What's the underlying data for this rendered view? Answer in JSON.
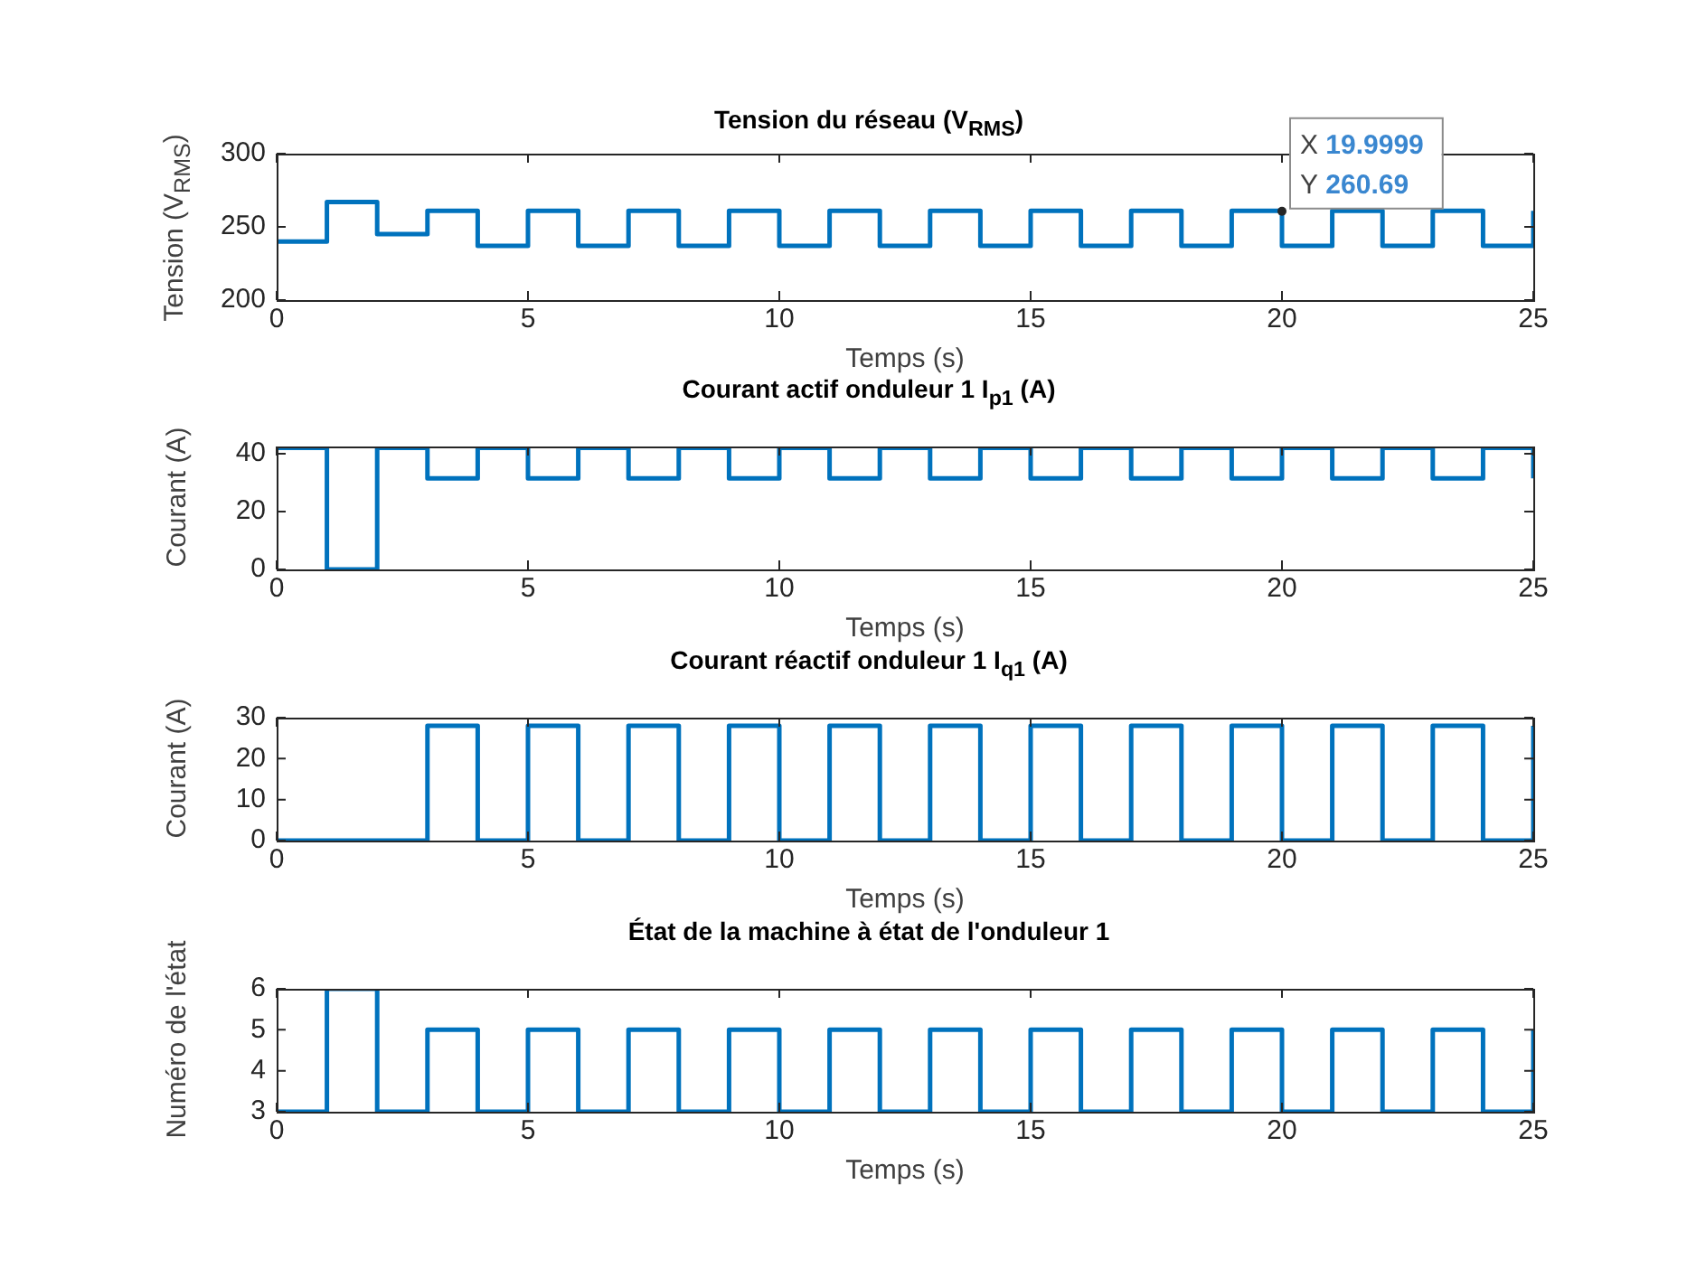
{
  "chart_data": [
    {
      "type": "step",
      "title": "Tension du réseau (V$_{RMS}$)",
      "xlabel": "Temps (s)",
      "ylabel": "Tension (V$_{RMS}$)",
      "color": "#0072bd",
      "line_style": "solid",
      "marker": "none",
      "x": [
        0,
        1,
        2,
        3,
        4,
        5,
        6,
        7,
        8,
        9,
        10,
        11,
        12,
        13,
        14,
        15,
        16,
        17,
        18,
        19,
        20,
        21,
        22,
        23,
        24,
        25
      ],
      "values": [
        240,
        267,
        245,
        261,
        237,
        261,
        237,
        261,
        237,
        261,
        237,
        261,
        237,
        261,
        237,
        261,
        237,
        261,
        237,
        261,
        237,
        261,
        237,
        261,
        237,
        261
      ],
      "xlim": [
        0,
        25
      ],
      "xticks": [
        0,
        5,
        10,
        15,
        20,
        25
      ],
      "ylim": [
        200,
        300
      ],
      "yticks": [
        200,
        250,
        300
      ],
      "annotations": [
        {
          "text": "X 19.9999\nY 260.69",
          "x": 19.9999,
          "y": 260.69
        }
      ]
    },
    {
      "type": "step",
      "title": "Courant actif onduleur 1 I$_{p1}$ (A)",
      "xlabel": "Temps (s)",
      "ylabel": "Courant (A)",
      "color": "#0072bd",
      "line_style": "solid",
      "marker": "none",
      "x": [
        0,
        1,
        2,
        3,
        4,
        5,
        6,
        7,
        8,
        9,
        10,
        11,
        12,
        13,
        14,
        15,
        16,
        17,
        18,
        19,
        20,
        21,
        22,
        23,
        24,
        25
      ],
      "values": [
        42,
        0,
        42,
        31.5,
        42,
        31.5,
        42,
        31.5,
        42,
        31.5,
        42,
        31.5,
        42,
        31.5,
        42,
        31.5,
        42,
        31.5,
        42,
        31.5,
        42,
        31.5,
        42,
        31.5,
        42,
        31.5
      ],
      "xlim": [
        0,
        25
      ],
      "xticks": [
        0,
        5,
        10,
        15,
        20,
        25
      ],
      "ylim": [
        0,
        42.5
      ],
      "yticks": [
        0,
        20,
        40
      ]
    },
    {
      "type": "step",
      "title": "Courant réactif onduleur 1 I$_{q1}$ (A)",
      "xlabel": "Temps (s)",
      "ylabel": "Courant (A)",
      "color": "#0072bd",
      "line_style": "solid",
      "marker": "none",
      "x": [
        0,
        1,
        2,
        3,
        4,
        5,
        6,
        7,
        8,
        9,
        10,
        11,
        12,
        13,
        14,
        15,
        16,
        17,
        18,
        19,
        20,
        21,
        22,
        23,
        24,
        25
      ],
      "values": [
        0,
        0,
        0,
        28,
        0,
        28,
        0,
        28,
        0,
        28,
        0,
        28,
        0,
        28,
        0,
        28,
        0,
        28,
        0,
        28,
        0,
        28,
        0,
        28,
        0,
        28
      ],
      "xlim": [
        0,
        25
      ],
      "xticks": [
        0,
        5,
        10,
        15,
        20,
        25
      ],
      "ylim": [
        0,
        30
      ],
      "yticks": [
        0,
        10,
        20,
        30
      ]
    },
    {
      "type": "step",
      "title": "État de la machine à état de l'onduleur 1",
      "xlabel": "Temps (s)",
      "ylabel": "Numéro de l'état",
      "color": "#0072bd",
      "line_style": "solid",
      "marker": "none",
      "x": [
        0,
        1,
        2,
        3,
        4,
        5,
        6,
        7,
        8,
        9,
        10,
        11,
        12,
        13,
        14,
        15,
        16,
        17,
        18,
        19,
        20,
        21,
        22,
        23,
        24,
        25
      ],
      "values": [
        3,
        6,
        3,
        5,
        3,
        5,
        3,
        5,
        3,
        5,
        3,
        5,
        3,
        5,
        3,
        5,
        3,
        5,
        3,
        5,
        3,
        5,
        3,
        5,
        3,
        5
      ],
      "xlim": [
        0,
        25
      ],
      "xticks": [
        0,
        5,
        10,
        15,
        20,
        25
      ],
      "ylim": [
        3,
        6
      ],
      "yticks": [
        3,
        4,
        5,
        6
      ]
    }
  ]
}
